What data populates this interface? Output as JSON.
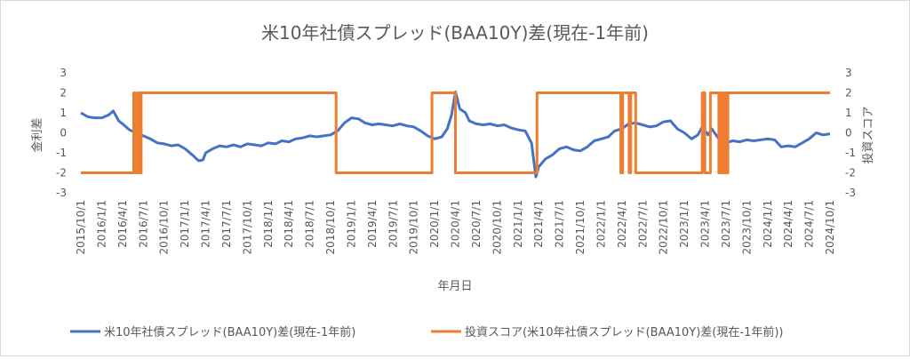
{
  "chart_data": {
    "type": "line",
    "title": "米10年社債スプレッド(BAA10Y)差(現在-1年前)",
    "xlabel": "年月日",
    "ylabel_left": "金利差",
    "ylabel_right": "投資スコア",
    "ylim_left": [
      -3,
      3
    ],
    "ylim_right": [
      -3,
      3
    ],
    "yticks_left": [
      "3",
      "2",
      "1",
      "0",
      "-1",
      "-2",
      "-3"
    ],
    "yticks_right": [
      "3",
      "2",
      "1",
      "0",
      "-1",
      "-2",
      "-3"
    ],
    "xlim": [
      "2015-10-01",
      "2024-10-01"
    ],
    "x_tick_labels": [
      "2015/10/1",
      "2016/1/1",
      "2016/4/1",
      "2016/7/1",
      "2016/10/1",
      "2017/1/1",
      "2017/4/1",
      "2017/7/1",
      "2017/10/1",
      "2018/1/1",
      "2018/4/1",
      "2018/7/1",
      "2018/10/1",
      "2019/1/1",
      "2019/4/1",
      "2019/7/1",
      "2019/10/1",
      "2020/1/1",
      "2020/4/1",
      "2020/7/1",
      "2020/10/1",
      "2021/1/1",
      "2021/4/1",
      "2021/7/1",
      "2021/10/1",
      "2022/1/1",
      "2022/4/1",
      "2022/7/1",
      "2022/10/1",
      "2023/1/1",
      "2023/4/1",
      "2023/7/1",
      "2023/10/1",
      "2024/1/1",
      "2024/4/1",
      "2024/7/1",
      "2024/10/1"
    ],
    "grid": false,
    "legend_position": "bottom",
    "series": [
      {
        "name": "米10年社債スプレッド(BAA10Y)差(現在-1年前)",
        "color": "#4472C4",
        "axis": "left",
        "points": [
          [
            "2015-10-01",
            1.0
          ],
          [
            "2015-11-01",
            0.8
          ],
          [
            "2015-12-01",
            0.75
          ],
          [
            "2016-01-01",
            0.75
          ],
          [
            "2016-02-01",
            0.9
          ],
          [
            "2016-02-20",
            1.1
          ],
          [
            "2016-03-15",
            0.6
          ],
          [
            "2016-04-01",
            0.45
          ],
          [
            "2016-05-01",
            0.15
          ],
          [
            "2016-06-01",
            0.0
          ],
          [
            "2016-07-01",
            -0.15
          ],
          [
            "2016-08-01",
            -0.3
          ],
          [
            "2016-09-01",
            -0.5
          ],
          [
            "2016-10-01",
            -0.55
          ],
          [
            "2016-11-01",
            -0.65
          ],
          [
            "2016-12-01",
            -0.6
          ],
          [
            "2017-01-01",
            -0.8
          ],
          [
            "2017-02-01",
            -1.1
          ],
          [
            "2017-03-01",
            -1.4
          ],
          [
            "2017-03-20",
            -1.35
          ],
          [
            "2017-04-01",
            -1.0
          ],
          [
            "2017-05-01",
            -0.8
          ],
          [
            "2017-06-01",
            -0.65
          ],
          [
            "2017-07-01",
            -0.7
          ],
          [
            "2017-08-01",
            -0.6
          ],
          [
            "2017-09-01",
            -0.7
          ],
          [
            "2017-10-01",
            -0.55
          ],
          [
            "2017-11-01",
            -0.6
          ],
          [
            "2017-12-01",
            -0.65
          ],
          [
            "2018-01-01",
            -0.5
          ],
          [
            "2018-02-01",
            -0.55
          ],
          [
            "2018-03-01",
            -0.4
          ],
          [
            "2018-04-01",
            -0.45
          ],
          [
            "2018-05-01",
            -0.3
          ],
          [
            "2018-06-01",
            -0.25
          ],
          [
            "2018-07-01",
            -0.15
          ],
          [
            "2018-08-01",
            -0.2
          ],
          [
            "2018-09-01",
            -0.15
          ],
          [
            "2018-10-01",
            -0.1
          ],
          [
            "2018-11-01",
            0.1
          ],
          [
            "2018-12-01",
            0.5
          ],
          [
            "2019-01-01",
            0.75
          ],
          [
            "2019-02-01",
            0.7
          ],
          [
            "2019-03-01",
            0.5
          ],
          [
            "2019-04-01",
            0.4
          ],
          [
            "2019-05-01",
            0.45
          ],
          [
            "2019-06-01",
            0.4
          ],
          [
            "2019-07-01",
            0.35
          ],
          [
            "2019-08-01",
            0.45
          ],
          [
            "2019-09-01",
            0.35
          ],
          [
            "2019-10-01",
            0.3
          ],
          [
            "2019-11-01",
            0.1
          ],
          [
            "2019-12-01",
            -0.15
          ],
          [
            "2020-01-01",
            -0.3
          ],
          [
            "2020-02-01",
            -0.2
          ],
          [
            "2020-02-25",
            0.2
          ],
          [
            "2020-03-15",
            0.9
          ],
          [
            "2020-04-01",
            2.05
          ],
          [
            "2020-04-20",
            1.2
          ],
          [
            "2020-05-15",
            1.0
          ],
          [
            "2020-06-01",
            0.6
          ],
          [
            "2020-07-01",
            0.45
          ],
          [
            "2020-08-01",
            0.4
          ],
          [
            "2020-09-01",
            0.45
          ],
          [
            "2020-10-01",
            0.35
          ],
          [
            "2020-11-01",
            0.4
          ],
          [
            "2020-12-01",
            0.25
          ],
          [
            "2021-01-01",
            0.15
          ],
          [
            "2021-02-01",
            0.1
          ],
          [
            "2021-03-01",
            -0.5
          ],
          [
            "2021-03-20",
            -2.2
          ],
          [
            "2021-04-01",
            -1.7
          ],
          [
            "2021-05-01",
            -1.3
          ],
          [
            "2021-06-01",
            -1.1
          ],
          [
            "2021-07-01",
            -0.8
          ],
          [
            "2021-08-01",
            -0.7
          ],
          [
            "2021-09-01",
            -0.85
          ],
          [
            "2021-10-01",
            -0.9
          ],
          [
            "2021-11-01",
            -0.7
          ],
          [
            "2021-12-01",
            -0.4
          ],
          [
            "2022-01-01",
            -0.3
          ],
          [
            "2022-02-01",
            -0.2
          ],
          [
            "2022-03-01",
            0.1
          ],
          [
            "2022-04-01",
            0.2
          ],
          [
            "2022-05-01",
            0.45
          ],
          [
            "2022-06-01",
            0.5
          ],
          [
            "2022-07-01",
            0.4
          ],
          [
            "2022-08-01",
            0.3
          ],
          [
            "2022-09-01",
            0.35
          ],
          [
            "2022-10-01",
            0.55
          ],
          [
            "2022-11-01",
            0.6
          ],
          [
            "2022-12-01",
            0.2
          ],
          [
            "2023-01-01",
            0.0
          ],
          [
            "2023-02-01",
            -0.3
          ],
          [
            "2023-03-01",
            -0.1
          ],
          [
            "2023-03-20",
            0.3
          ],
          [
            "2023-04-15",
            -0.1
          ],
          [
            "2023-05-01",
            0.2
          ],
          [
            "2023-06-01",
            -0.3
          ],
          [
            "2023-07-01",
            -0.5
          ],
          [
            "2023-08-01",
            -0.4
          ],
          [
            "2023-09-01",
            -0.45
          ],
          [
            "2023-10-01",
            -0.35
          ],
          [
            "2023-11-01",
            -0.4
          ],
          [
            "2023-12-01",
            -0.35
          ],
          [
            "2024-01-01",
            -0.3
          ],
          [
            "2024-02-01",
            -0.35
          ],
          [
            "2024-03-01",
            -0.7
          ],
          [
            "2024-04-01",
            -0.65
          ],
          [
            "2024-05-01",
            -0.7
          ],
          [
            "2024-06-01",
            -0.5
          ],
          [
            "2024-07-01",
            -0.3
          ],
          [
            "2024-08-01",
            0.0
          ],
          [
            "2024-09-01",
            -0.1
          ],
          [
            "2024-10-01",
            -0.05
          ]
        ]
      },
      {
        "name": "投資スコア(米10年社債スプレッド(BAA10Y)差(現在-1年前))",
        "color": "#ED7D31",
        "axis": "right",
        "points": [
          [
            "2015-10-01",
            -2
          ],
          [
            "2016-05-20",
            -2
          ],
          [
            "2016-05-20",
            2
          ],
          [
            "2016-05-27",
            2
          ],
          [
            "2016-05-27",
            -2
          ],
          [
            "2016-06-08",
            -2
          ],
          [
            "2016-06-08",
            2
          ],
          [
            "2016-06-16",
            2
          ],
          [
            "2016-06-16",
            -2
          ],
          [
            "2016-06-22",
            -2
          ],
          [
            "2016-06-22",
            2
          ],
          [
            "2018-10-25",
            2
          ],
          [
            "2018-10-25",
            -2
          ],
          [
            "2019-12-20",
            -2
          ],
          [
            "2019-12-20",
            2
          ],
          [
            "2020-04-01",
            2
          ],
          [
            "2020-04-01",
            -2
          ],
          [
            "2021-03-25",
            -2
          ],
          [
            "2021-03-25",
            2
          ],
          [
            "2022-03-28",
            2
          ],
          [
            "2022-03-28",
            -2
          ],
          [
            "2022-04-05",
            -2
          ],
          [
            "2022-04-05",
            2
          ],
          [
            "2022-05-03",
            2
          ],
          [
            "2022-05-03",
            -2
          ],
          [
            "2022-05-10",
            -2
          ],
          [
            "2022-05-10",
            2
          ],
          [
            "2022-06-01",
            2
          ],
          [
            "2022-06-01",
            -2
          ],
          [
            "2023-03-20",
            -2
          ],
          [
            "2023-03-20",
            2
          ],
          [
            "2023-04-01",
            2
          ],
          [
            "2023-04-01",
            -2
          ],
          [
            "2023-04-25",
            -2
          ],
          [
            "2023-04-25",
            2
          ],
          [
            "2023-06-01",
            2
          ],
          [
            "2023-06-01",
            -2
          ],
          [
            "2023-06-10",
            -2
          ],
          [
            "2023-06-10",
            2
          ],
          [
            "2023-06-20",
            2
          ],
          [
            "2023-06-20",
            -2
          ],
          [
            "2023-06-27",
            -2
          ],
          [
            "2023-06-27",
            2
          ],
          [
            "2023-07-05",
            2
          ],
          [
            "2023-07-05",
            -2
          ],
          [
            "2023-07-11",
            -2
          ],
          [
            "2023-07-11",
            2
          ],
          [
            "2024-10-01",
            2
          ]
        ]
      }
    ]
  }
}
